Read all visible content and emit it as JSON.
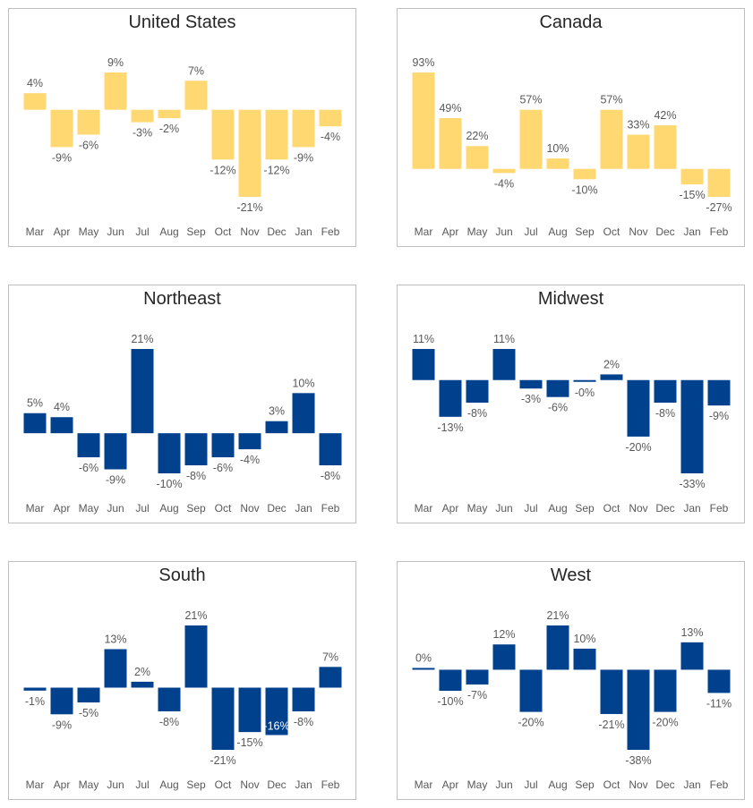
{
  "colors": {
    "yellow": "#FFD871",
    "blue": "#00418E",
    "text": "#595959",
    "inside_label": "#FFFFFF"
  },
  "chart_data": [
    {
      "type": "bar",
      "title": "United States",
      "color": "yellow",
      "categories": [
        "Mar",
        "Apr",
        "May",
        "Jun",
        "Jul",
        "Aug",
        "Sep",
        "Oct",
        "Nov",
        "Dec",
        "Jan",
        "Feb"
      ],
      "values": [
        4,
        -9,
        -6,
        9,
        -3,
        -2,
        7,
        -12,
        -21,
        -12,
        -9,
        -4
      ],
      "labels": [
        "4%",
        "-9%",
        "-6%",
        "9%",
        "-3%",
        "-2%",
        "7%",
        "-12%",
        "-21%",
        "-12%",
        "-9%",
        "-4%"
      ]
    },
    {
      "type": "bar",
      "title": "Canada",
      "color": "yellow",
      "categories": [
        "Mar",
        "Apr",
        "May",
        "Jun",
        "Jul",
        "Aug",
        "Sep",
        "Oct",
        "Nov",
        "Dec",
        "Jan",
        "Feb"
      ],
      "values": [
        93,
        49,
        22,
        -4,
        57,
        10,
        -10,
        57,
        33,
        42,
        -15,
        -27
      ],
      "labels": [
        "93%",
        "49%",
        "22%",
        "-4%",
        "57%",
        "10%",
        "-10%",
        "57%",
        "33%",
        "42%",
        "-15%",
        "-27%"
      ]
    },
    {
      "type": "bar",
      "title": "Northeast",
      "color": "blue",
      "categories": [
        "Mar",
        "Apr",
        "May",
        "Jun",
        "Jul",
        "Aug",
        "Sep",
        "Oct",
        "Nov",
        "Dec",
        "Jan",
        "Feb"
      ],
      "values": [
        5,
        4,
        -6,
        -9,
        21,
        -10,
        -8,
        -6,
        -4,
        3,
        10,
        -8
      ],
      "labels": [
        "5%",
        "4%",
        "-6%",
        "-9%",
        "21%",
        "-10%",
        "-8%",
        "-6%",
        "-4%",
        "3%",
        "10%",
        "-8%"
      ]
    },
    {
      "type": "bar",
      "title": "Midwest",
      "color": "blue",
      "categories": [
        "Mar",
        "Apr",
        "May",
        "Jun",
        "Jul",
        "Aug",
        "Sep",
        "Oct",
        "Nov",
        "Dec",
        "Jan",
        "Feb"
      ],
      "values": [
        11,
        -13,
        -8,
        11,
        -3,
        -6,
        -0.4,
        2,
        -20,
        -8,
        -33,
        -9
      ],
      "labels": [
        "11%",
        "-13%",
        "-8%",
        "11%",
        "-3%",
        "-6%",
        "-0%",
        "2%",
        "-20%",
        "-8%",
        "-33%",
        "-9%"
      ]
    },
    {
      "type": "bar",
      "title": "South",
      "color": "blue",
      "categories": [
        "Mar",
        "Apr",
        "May",
        "Jun",
        "Jul",
        "Aug",
        "Sep",
        "Oct",
        "Nov",
        "Dec",
        "Jan",
        "Feb"
      ],
      "values": [
        -1,
        -9,
        -5,
        13,
        2,
        -8,
        21,
        -21,
        -15,
        -16,
        -8,
        7
      ],
      "labels": [
        "-1%",
        "-9%",
        "-5%",
        "13%",
        "2%",
        "-8%",
        "21%",
        "-21%",
        "-15%",
        "-16%",
        "-8%",
        "7%"
      ],
      "inside_label_index": 9
    },
    {
      "type": "bar",
      "title": "West",
      "color": "blue",
      "categories": [
        "Mar",
        "Apr",
        "May",
        "Jun",
        "Jul",
        "Aug",
        "Sep",
        "Oct",
        "Nov",
        "Dec",
        "Jan",
        "Feb"
      ],
      "values": [
        0.3,
        -10,
        -7,
        12,
        -20,
        21,
        10,
        -21,
        -38,
        -20,
        13,
        -11
      ],
      "labels": [
        "0%",
        "-10%",
        "-7%",
        "12%",
        "-20%",
        "21%",
        "10%",
        "-21%",
        "-38%",
        "-20%",
        "13%",
        "-11%"
      ]
    }
  ]
}
